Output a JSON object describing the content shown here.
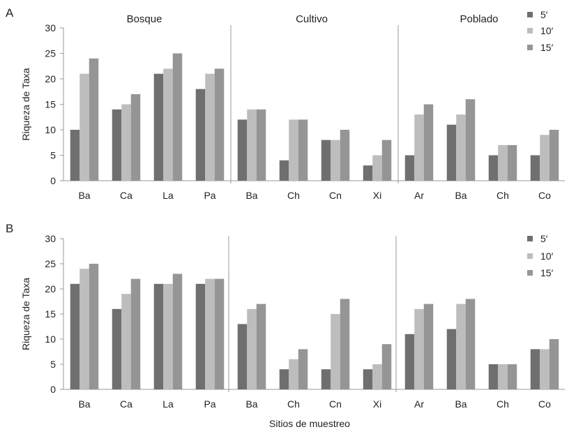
{
  "colors": {
    "5": "#6f6f6f",
    "10": "#bdbdbd",
    "15": "#959595"
  },
  "xlabel": "Sitios de muestreo",
  "legend": [
    "5′",
    "10′",
    "15′"
  ],
  "chart_data": [
    {
      "type": "bar",
      "panel": "A",
      "ylabel": "Riqueza de Taxa",
      "ylim": [
        0,
        30
      ],
      "yticks": [
        0,
        5,
        10,
        15,
        20,
        25,
        30
      ],
      "legend_position": "top-right",
      "groups": [
        {
          "name": "Bosque",
          "categories": [
            "Ba",
            "Ca",
            "La",
            "Pa"
          ]
        },
        {
          "name": "Cultivo",
          "categories": [
            "Ba",
            "Ch",
            "Cn",
            "Xi"
          ]
        },
        {
          "name": "Poblado",
          "categories": [
            "Ar",
            "Ba",
            "Ch",
            "Co"
          ]
        }
      ],
      "series": [
        {
          "name": "5′",
          "values": [
            10,
            14,
            21,
            18,
            12,
            4,
            8,
            3,
            5,
            11,
            5,
            5
          ]
        },
        {
          "name": "10′",
          "values": [
            21,
            15,
            22,
            21,
            14,
            12,
            8,
            5,
            13,
            13,
            7,
            9
          ]
        },
        {
          "name": "15′",
          "values": [
            24,
            17,
            25,
            22,
            14,
            12,
            10,
            8,
            15,
            16,
            7,
            10
          ]
        }
      ]
    },
    {
      "type": "bar",
      "panel": "B",
      "ylabel": "Riqueza de Taxa",
      "ylim": [
        0,
        30
      ],
      "yticks": [
        0,
        5,
        10,
        15,
        20,
        25,
        30
      ],
      "legend_position": "top-right",
      "groups": [
        {
          "name": "",
          "categories": [
            "Ba",
            "Ca",
            "La",
            "Pa"
          ]
        },
        {
          "name": "",
          "categories": [
            "Ba",
            "Ch",
            "Cn",
            "Xi"
          ]
        },
        {
          "name": "",
          "categories": [
            "Ar",
            "Ba",
            "Ch",
            "Co"
          ]
        }
      ],
      "series": [
        {
          "name": "5′",
          "values": [
            21,
            16,
            21,
            21,
            13,
            4,
            4,
            4,
            11,
            12,
            5,
            8
          ]
        },
        {
          "name": "10′",
          "values": [
            24,
            19,
            21,
            22,
            16,
            6,
            15,
            5,
            16,
            17,
            5,
            8
          ]
        },
        {
          "name": "15′",
          "values": [
            25,
            22,
            23,
            22,
            17,
            8,
            18,
            9,
            17,
            18,
            5,
            10
          ]
        }
      ]
    }
  ]
}
